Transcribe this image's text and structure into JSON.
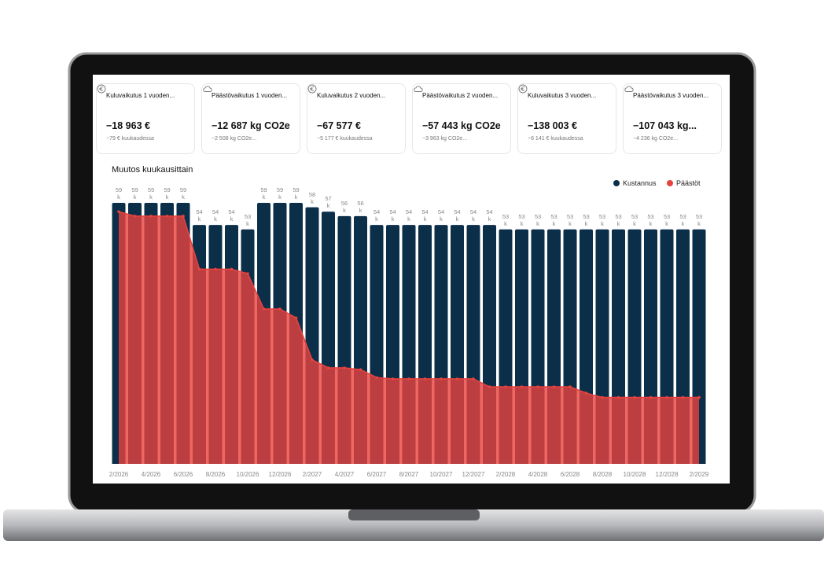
{
  "cards": [
    {
      "title": "Kuluvaikutus 1 vuoden...",
      "value": "−18 963 €",
      "subtitle": "−79 € kuukaudessa"
    },
    {
      "title": "Päästövaikutus 1 vuoden...",
      "value": "−12 687 kg CO2e",
      "subtitle": "−2 508 kg CO2e..."
    },
    {
      "title": "Kuluvaikutus 2 vuoden...",
      "value": "−67 577 €",
      "subtitle": "−5 177 € kuukaudessa"
    },
    {
      "title": "Päästövaikutus 2 vuoden...",
      "value": "−57 443 kg CO2e",
      "subtitle": "−3 963 kg CO2e..."
    },
    {
      "title": "Kuluvaikutus 3 vuoden...",
      "value": "−138 003 €",
      "subtitle": "−6 141 € kuukaudessa"
    },
    {
      "title": "Päästövaikutus 3 vuoden...",
      "value": "−107 043 kg...",
      "subtitle": "−4 236 kg CO2e..."
    }
  ],
  "chart_data": {
    "type": "bar",
    "title": "Muutos kuukausittain",
    "categories": [
      "2/2026",
      null,
      "4/2026",
      null,
      "6/2026",
      null,
      "8/2026",
      null,
      "10/2026",
      null,
      "12/2026",
      null,
      "2/2027",
      null,
      "4/2027",
      null,
      "6/2027",
      null,
      "8/2027",
      null,
      "10/2027",
      null,
      "12/2027",
      null,
      "2/2028",
      null,
      "4/2028",
      null,
      "6/2028",
      null,
      "8/2028",
      null,
      "10/2028",
      null,
      "12/2028",
      null,
      "2/2029"
    ],
    "series": [
      {
        "name": "Kustannus",
        "color": "#0b2f48",
        "values": [
          59,
          59,
          59,
          59,
          59,
          54,
          54,
          54,
          53,
          59,
          59,
          59,
          58,
          57,
          56,
          56,
          54,
          54,
          54,
          54,
          54,
          54,
          54,
          54,
          53,
          53,
          53,
          53,
          53,
          53,
          53,
          53,
          53,
          53,
          53,
          53,
          53
        ],
        "value_labels": [
          "59 k",
          "59 k",
          "59 k",
          "59 k",
          "59 k",
          "54 k",
          "54 k",
          "54 k",
          "53 k",
          "59 k",
          "59 k",
          "59 k",
          "58 k",
          "57 k",
          "56 k",
          "56 k",
          "54 k",
          "54 k",
          "54 k",
          "54 k",
          "54 k",
          "54 k",
          "54 k",
          "54 k",
          "53 k",
          "53 k",
          "53 k",
          "53 k",
          "53 k",
          "53 k",
          "53 k",
          "53 k",
          "53 k",
          "53 k",
          "53 k",
          "53 k",
          "53 k"
        ]
      },
      {
        "name": "Päästöt",
        "color": "#e8423f",
        "type": "area",
        "values": [
          57,
          56,
          56,
          56,
          56,
          44,
          44,
          44,
          43,
          35,
          35,
          33,
          23.5,
          21.7,
          21.7,
          21.3,
          19.5,
          19.2,
          19.2,
          19.2,
          19.2,
          19.2,
          19.2,
          17.4,
          17.4,
          17.4,
          17.4,
          17.4,
          17.4,
          16,
          15,
          15,
          15,
          15,
          15,
          15,
          15
        ]
      }
    ],
    "legend": "top-right"
  }
}
